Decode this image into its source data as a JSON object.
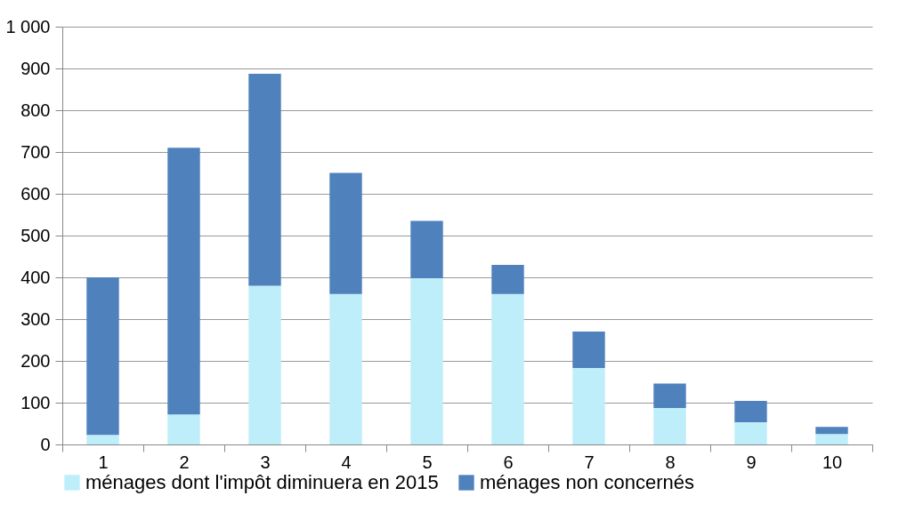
{
  "chart_data": {
    "type": "bar",
    "stacked": true,
    "categories": [
      "1",
      "2",
      "3",
      "4",
      "5",
      "6",
      "7",
      "8",
      "9",
      "10"
    ],
    "series": [
      {
        "name": "ménages dont l'impôt diminuera en 2015",
        "color": "#bdeefa",
        "values": [
          23,
          72,
          380,
          360,
          398,
          360,
          183,
          87,
          53,
          25
        ]
      },
      {
        "name": "ménages non concernés",
        "color": "#4f81bd",
        "values": [
          377,
          638,
          507,
          290,
          137,
          70,
          87,
          59,
          51,
          17
        ]
      }
    ],
    "ylim": [
      0,
      1000
    ],
    "yticks": [
      0,
      100,
      200,
      300,
      400,
      500,
      600,
      700,
      800,
      900,
      {
        "value": 1000,
        "label": "1 000"
      }
    ],
    "grid": "y",
    "legend": "bottom"
  }
}
